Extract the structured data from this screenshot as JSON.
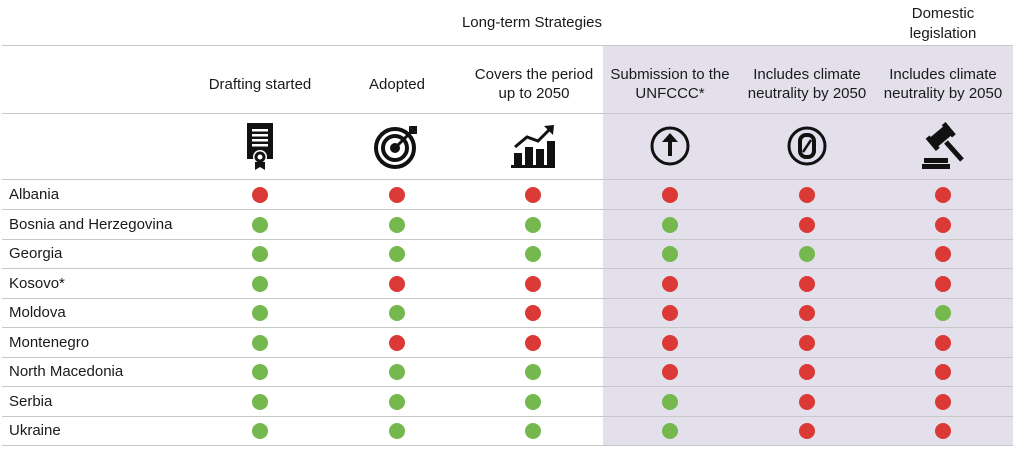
{
  "groups": {
    "long_term": "Long-term Strategies",
    "domestic_line1": "Domestic",
    "domestic_line2": "legislation"
  },
  "columns": [
    {
      "label": "Drafting started",
      "icon": "certificate-document-icon"
    },
    {
      "label": "Adopted",
      "icon": "target-icon"
    },
    {
      "label": "Covers the period up to 2050",
      "icon": "growth-chart-icon"
    },
    {
      "label": "Submission to the UNFCCC*",
      "icon": "upload-arrow-icon"
    },
    {
      "label": "Includes climate neutrality by 2050",
      "icon": "zero-icon"
    },
    {
      "label": "Includes climate neutrality by 2050",
      "icon": "gavel-icon"
    }
  ],
  "colors": {
    "green": "#74b84e",
    "red": "#db3935",
    "shade": "#e3e0ec"
  },
  "rows": [
    {
      "country": "Albania",
      "status": [
        "red",
        "red",
        "red",
        "red",
        "red",
        "red"
      ]
    },
    {
      "country": "Bosnia and Herzegovina",
      "status": [
        "green",
        "green",
        "green",
        "green",
        "red",
        "red"
      ]
    },
    {
      "country": "Georgia",
      "status": [
        "green",
        "green",
        "green",
        "green",
        "green",
        "red"
      ]
    },
    {
      "country": "Kosovo*",
      "status": [
        "green",
        "red",
        "red",
        "red",
        "red",
        "red"
      ]
    },
    {
      "country": "Moldova",
      "status": [
        "green",
        "green",
        "red",
        "red",
        "red",
        "green"
      ]
    },
    {
      "country": "Montenegro",
      "status": [
        "green",
        "red",
        "red",
        "red",
        "red",
        "red"
      ]
    },
    {
      "country": "North Macedonia",
      "status": [
        "green",
        "green",
        "green",
        "red",
        "red",
        "red"
      ]
    },
    {
      "country": "Serbia",
      "status": [
        "green",
        "green",
        "green",
        "green",
        "red",
        "red"
      ]
    },
    {
      "country": "Ukraine",
      "status": [
        "green",
        "green",
        "green",
        "green",
        "red",
        "red"
      ]
    }
  ]
}
